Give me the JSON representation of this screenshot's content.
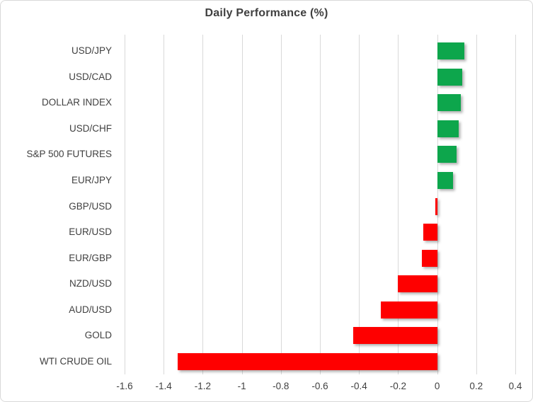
{
  "chart_data": {
    "type": "bar",
    "orientation": "horizontal",
    "title": "Daily Performance (%)",
    "categories": [
      "USD/JPY",
      "USD/CAD",
      "DOLLAR INDEX",
      "USD/CHF",
      "S&P 500 FUTURES",
      "EUR/JPY",
      "GBP/USD",
      "EUR/USD",
      "EUR/GBP",
      "NZD/USD",
      "AUD/USD",
      "GOLD",
      "WTI CRUDE OIL"
    ],
    "values": [
      0.14,
      0.13,
      0.12,
      0.11,
      0.1,
      0.08,
      -0.01,
      -0.07,
      -0.08,
      -0.2,
      -0.29,
      -0.43,
      -1.33
    ],
    "xlabel": "",
    "ylabel": "",
    "xlim": [
      -1.6,
      0.4
    ],
    "x_ticks": [
      -1.6,
      -1.4,
      -1.2,
      -1,
      -0.8,
      -0.6,
      -0.4,
      -0.2,
      0,
      0.2,
      0.4
    ],
    "x_tick_labels": [
      "-1.6",
      "-1.4",
      "-1.2",
      "-1",
      "-0.8",
      "-0.6",
      "-0.4",
      "-0.2",
      "0",
      "0.2",
      "0.4"
    ],
    "grid": "vertical-on",
    "legend": "none",
    "colors": {
      "positive": "#0da64c",
      "negative": "#fe0000",
      "gridline": "#d9d9d9",
      "text": "#404040",
      "title": "#3f3f3f",
      "border": "#d9d9d9",
      "background": "#ffffff"
    }
  }
}
